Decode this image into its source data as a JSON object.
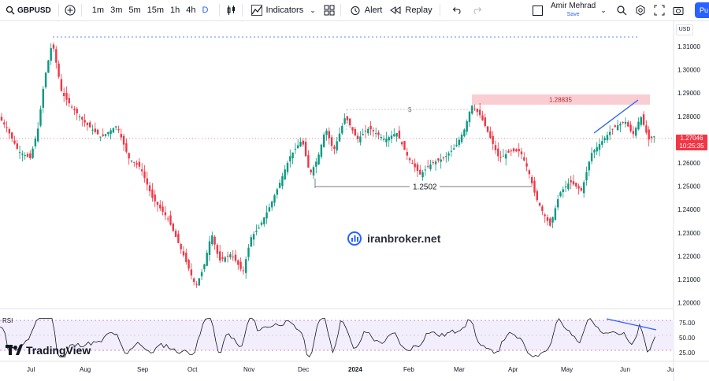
{
  "toolbar": {
    "symbol": "GBPUSD",
    "intervals": [
      "1m",
      "3m",
      "5m",
      "15m",
      "1h",
      "4h",
      "D"
    ],
    "active_interval": "D",
    "indicators_label": "Indicators",
    "alert_label": "Alert",
    "replay_label": "Replay",
    "user_name": "Amir Mehrad",
    "save_label": "Save",
    "publish_label": "Pu"
  },
  "chart": {
    "currency": "USD",
    "y_ticks": [
      "1.31000",
      "1.30000",
      "1.29000",
      "1.28000",
      "1.27000",
      "1.26000",
      "1.25000",
      "1.24000",
      "1.23000",
      "1.22000",
      "1.21000",
      "1.20000"
    ],
    "x_ticks": [
      "Jul",
      "Aug",
      "Sep",
      "Oct",
      "Nov",
      "Dec",
      "2024",
      "Feb",
      "Mar",
      "Apr",
      "May",
      "Jun",
      "Ju"
    ],
    "last_price": "1.27046",
    "countdown": "10:25:35",
    "resistance_label": "1.28835",
    "support_label": "1.2502",
    "dollar_marker": "$",
    "rsi_label": "RSI",
    "rsi_ticks": [
      "75.00",
      "50.00",
      "25.00"
    ],
    "colors": {
      "up": "#089981",
      "down": "#f23645",
      "trend": "#2962ff",
      "rsi_band": "#f3eefc"
    }
  },
  "watermark": {
    "text": "iranbroker.net"
  },
  "logo": {
    "text": "TradingView"
  }
}
